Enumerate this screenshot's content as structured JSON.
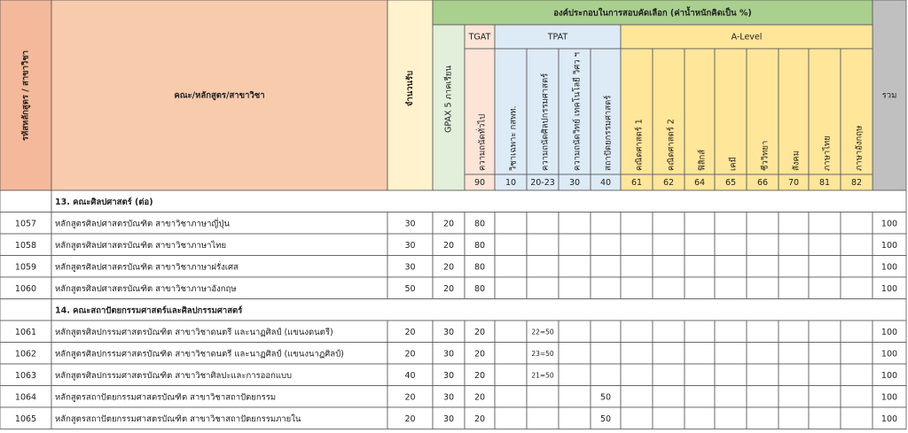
{
  "header": {
    "code_label": "รหัสหลักสูตร / สาขาวิชา",
    "name_label": "คณะ/หลักสูตร/สาขาวิชา",
    "quota_label": "จำนวนรับ",
    "group_title": "องค์ประกอบในการสอบคัดเลือก (ค่าน้ำหนักคิดเป็น %)",
    "gpax_label": "GPAX 5 ภาคเรียน",
    "tests": [
      {
        "name": "TGAT",
        "subjects": [
          {
            "label": "ความถนัดทั่วไป",
            "code": 90
          }
        ]
      },
      {
        "name": "TPAT",
        "subjects": [
          {
            "label": "วิชาเฉพาะ กสพท.",
            "code": 10
          },
          {
            "label": "ความถนัดศิลปกรรมศาสตร์",
            "code": "20-23"
          },
          {
            "label": "ความถนัดวิทย์ เทคโนโลยี วิศว ฯ",
            "code": 30
          },
          {
            "label": "สถาปัตยกรรมศาสตร์",
            "code": 40
          }
        ]
      },
      {
        "name": "A-Level",
        "subjects": [
          {
            "label": "คณิตศาสตร์ 1",
            "code": 61
          },
          {
            "label": "คณิตศาสตร์ 2",
            "code": 62
          },
          {
            "label": "ฟิสิกส์",
            "code": 64
          },
          {
            "label": "เคมี",
            "code": 65
          },
          {
            "label": "ชีววิทยา",
            "code": 66
          },
          {
            "label": "สังคม",
            "code": 70
          },
          {
            "label": "ภาษาไทย",
            "code": 81
          },
          {
            "label": "ภาษาอังกฤษ",
            "code": 82
          }
        ]
      }
    ],
    "total_label": "รวม"
  },
  "body": [
    {
      "section": "13. คณะศิลปศาสตร์ (ต่อ)"
    },
    {
      "code": "1057",
      "name": "หลักสูตรศิลปศาสตรบัณฑิต สาขาวิชาภาษาญี่ปุ่น",
      "quota": 30,
      "gpax": 20,
      "tgat": 80,
      "total": 100
    },
    {
      "code": "1058",
      "name": "หลักสูตรศิลปศาสตรบัณฑิต สาขาวิชาภาษาไทย",
      "quota": 30,
      "gpax": 20,
      "tgat": 80,
      "total": 100
    },
    {
      "code": "1059",
      "name": "หลักสูตรศิลปศาสตรบัณฑิต สาขาวิชาภาษาฝรั่งเศส",
      "quota": 30,
      "gpax": 20,
      "tgat": 80,
      "total": 100
    },
    {
      "code": "1060",
      "name": "หลักสูตรศิลปศาสตรบัณฑิต สาขาวิชาภาษาอังกฤษ",
      "quota": 50,
      "gpax": 20,
      "tgat": 80,
      "total": 100
    },
    {
      "section": "14. คณะสถาปัตยกรรมศาสตร์และศิลปกรรมศาสตร์"
    },
    {
      "code": "1061",
      "name": "หลักสูตรศิลปกรรมศาสตรบัณฑิต สาขาวิชาดนตรี และนาฏศิลป์  (แขนงดนตรี)",
      "quota": 20,
      "gpax": 30,
      "tgat": 20,
      "tpat2": "22=50",
      "total": 100
    },
    {
      "code": "1062",
      "name": "หลักสูตรศิลปกรรมศาสตรบัณฑิต สาขาวิชาดนตรี และนาฏศิลป์  (แขนงนาฏศิลป์)",
      "quota": 20,
      "gpax": 30,
      "tgat": 20,
      "tpat2": "23=50",
      "total": 100
    },
    {
      "code": "1063",
      "name": "หลักสูตรศิลปกรรมศาสตรบัณฑิต สาขาวิชาศิลปะและการออกแบบ",
      "quota": 40,
      "gpax": 30,
      "tgat": 20,
      "tpat2": "21=50",
      "total": 100
    },
    {
      "code": "1064",
      "name": "หลักสูตรสถาปัตยกรรมศาสตรบัณฑิต สาขาวิชาสถาปัตยกรรม",
      "quota": 20,
      "gpax": 30,
      "tgat": 20,
      "tpat4": 50,
      "total": 100
    },
    {
      "code": "1065",
      "name": "หลักสูตรสถาปัตยกรรมศาสตรบัณฑิต สาขาวิชาสถาปัตยกรรมภายใน",
      "quota": 20,
      "gpax": 30,
      "tgat": 20,
      "tpat4": 50,
      "total": 100
    }
  ]
}
